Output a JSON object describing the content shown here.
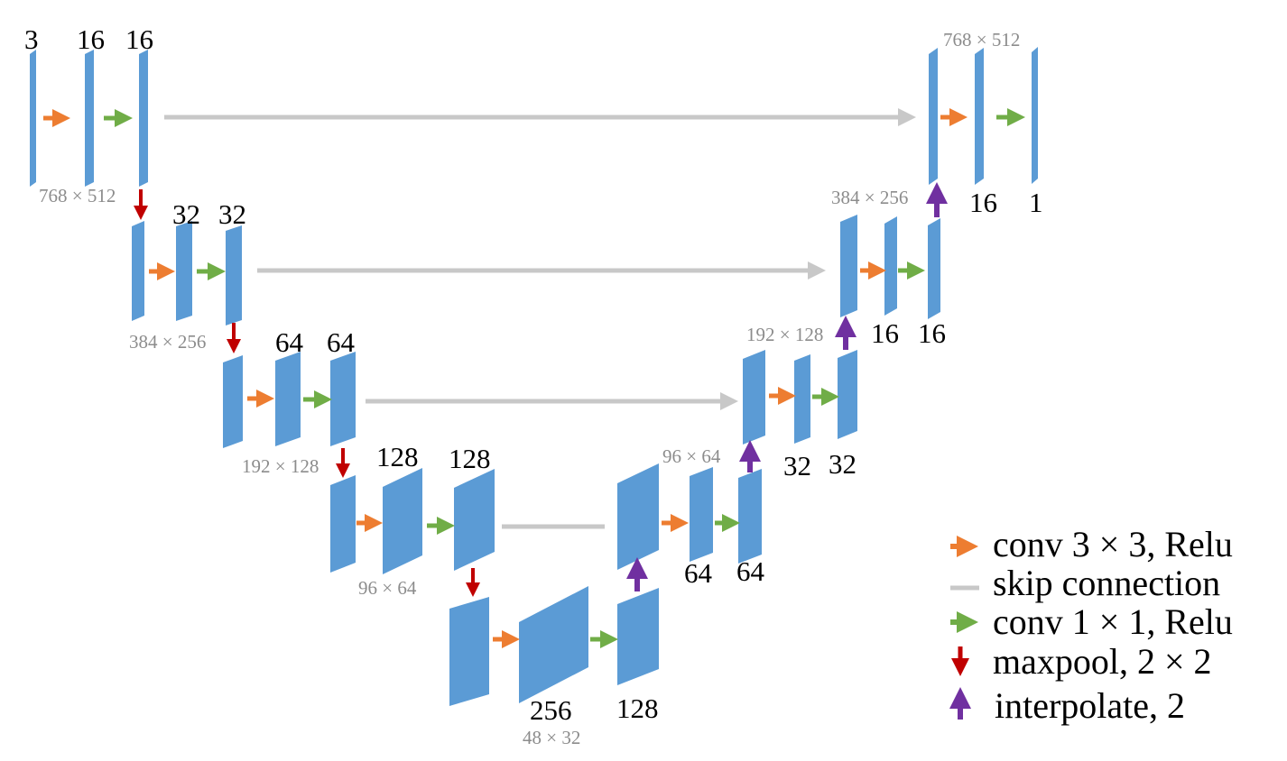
{
  "colors": {
    "block": "#5b9bd5",
    "conv3": "#ed7d31",
    "conv1": "#70ad47",
    "skip": "#c8c8c8",
    "maxpool": "#c00000",
    "interpolate": "#7030a0"
  },
  "channels": {
    "enc1": [
      "3",
      "16",
      "16"
    ],
    "enc2": [
      "32",
      "32"
    ],
    "enc3": [
      "64",
      "64"
    ],
    "enc4": [
      "128",
      "128"
    ],
    "bottom": [
      "256",
      "128"
    ],
    "dec4": [
      "64",
      "64"
    ],
    "dec3": [
      "32",
      "32"
    ],
    "dec2": [
      "16",
      "16"
    ],
    "dec1": [
      "16",
      "1"
    ]
  },
  "dims": {
    "enc1": "768 × 512",
    "enc2": "384 × 256",
    "enc3": "192 × 128",
    "enc4": "96 × 64",
    "bottom": "48 × 32",
    "dec4": "96 × 64",
    "dec3": "192 × 128",
    "dec2": "384 × 256",
    "dec1": "768 × 512"
  },
  "legend": {
    "conv3": "conv 3 × 3, Relu",
    "skip": "skip connection",
    "conv1": "conv 1 × 1, Relu",
    "maxpool": "maxpool, 2 × 2",
    "interpolate": "interpolate, 2"
  }
}
